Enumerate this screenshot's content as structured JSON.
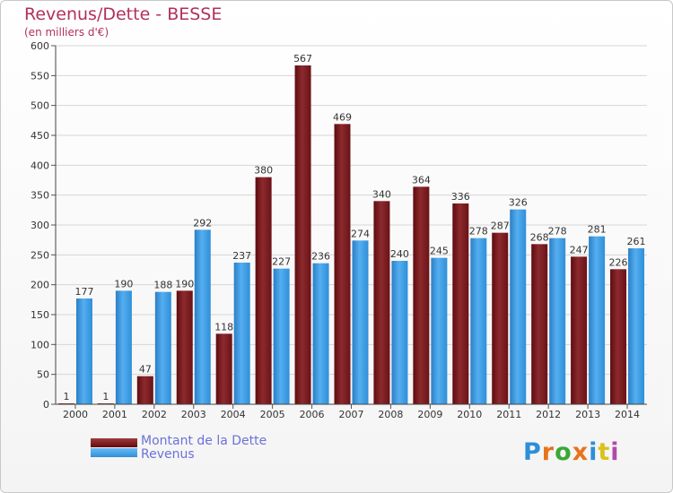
{
  "title": "Revenus/Dette - BESSE",
  "subtitle": "(en milliers d'€)",
  "colors": {
    "debt": "#7a1a1e",
    "revenue": "#2f8fd8",
    "title": "#b2305a",
    "legend_text": "#6b72d8"
  },
  "legend": {
    "debt_label": "Montant de la Dette",
    "revenue_label": "Revenus"
  },
  "logo": {
    "text": "Proxiti"
  },
  "chart_data": {
    "type": "bar",
    "title": "Revenus/Dette - BESSE",
    "subtitle": "(en milliers d'€)",
    "xlabel": "",
    "ylabel": "",
    "ylim": [
      0,
      600
    ],
    "yticks": [
      0,
      50,
      100,
      150,
      200,
      250,
      300,
      350,
      400,
      450,
      500,
      550,
      600
    ],
    "grid": true,
    "legend_position": "bottom-left",
    "categories": [
      "2000",
      "2001",
      "2002",
      "2003",
      "2004",
      "2005",
      "2006",
      "2007",
      "2008",
      "2009",
      "2010",
      "2011",
      "2012",
      "2013",
      "2014"
    ],
    "series": [
      {
        "name": "Montant de la Dette",
        "values": [
          1,
          1,
          47,
          190,
          118,
          380,
          567,
          469,
          340,
          364,
          336,
          287,
          268,
          247,
          226
        ]
      },
      {
        "name": "Revenus",
        "values": [
          177,
          190,
          188,
          292,
          237,
          227,
          236,
          274,
          240,
          245,
          278,
          326,
          278,
          281,
          261
        ]
      }
    ]
  }
}
